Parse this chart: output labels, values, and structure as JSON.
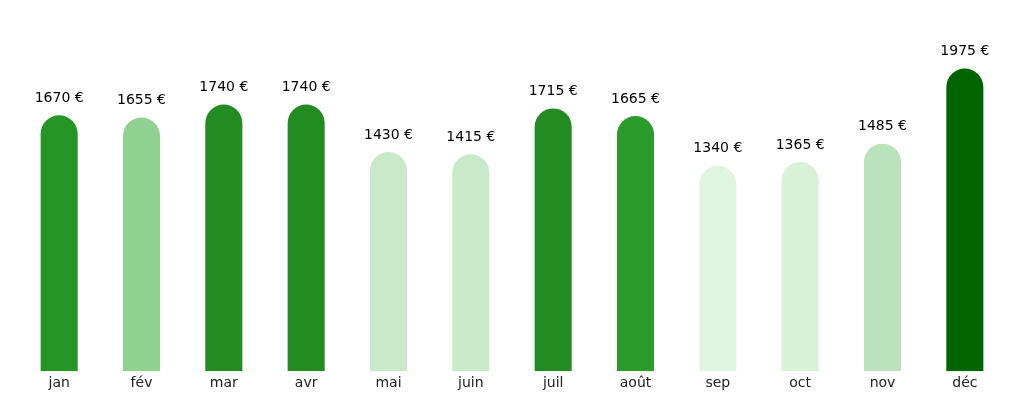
{
  "chart_data": {
    "type": "bar",
    "categories": [
      "jan",
      "fév",
      "mar",
      "avr",
      "mai",
      "juin",
      "juil",
      "août",
      "sep",
      "oct",
      "nov",
      "déc"
    ],
    "values": [
      1670,
      1655,
      1740,
      1740,
      1430,
      1415,
      1715,
      1665,
      1340,
      1365,
      1485,
      1975
    ],
    "colors": [
      "#259625",
      "#8fd18f",
      "#228b22",
      "#228b22",
      "#c9eac9",
      "#c9eac9",
      "#228b22",
      "#2a9a2a",
      "#dff5df",
      "#d8f2d8",
      "#bbe3bb",
      "#006400"
    ],
    "value_labels": [
      "1670 €",
      "1655 €",
      "1740 €",
      "1740 €",
      "1430 €",
      "1415 €",
      "1715 €",
      "1665 €",
      "1340 €",
      "1365 €",
      "1485 €",
      "1975 €"
    ],
    "grid": false,
    "legend": false
  }
}
